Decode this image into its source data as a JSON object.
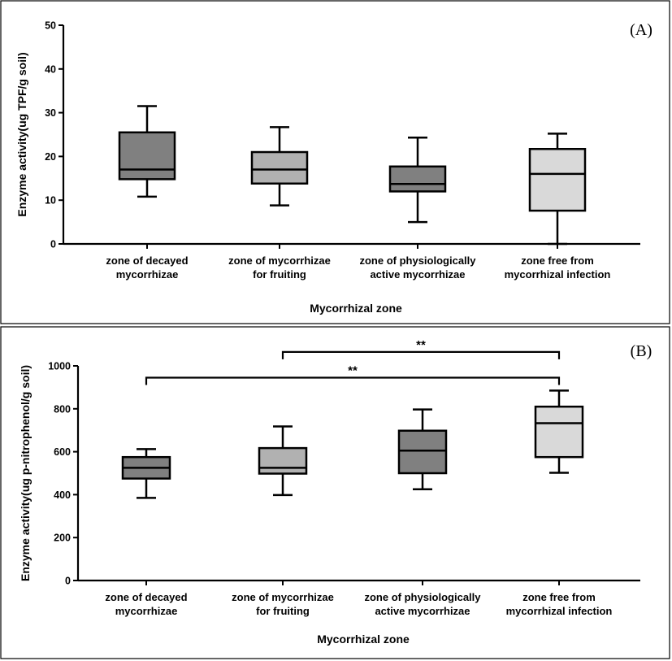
{
  "chart_data": [
    {
      "type": "boxplot",
      "panel_label": "(A)",
      "ylabel": "Enzyme activity(ug TPF/g soil)",
      "xlabel": "Mycorrhizal zone",
      "ylim": [
        0,
        50
      ],
      "yticks": [
        0,
        10,
        20,
        30,
        40,
        50
      ],
      "categories": [
        [
          "zone of decayed",
          "mycorrhizae"
        ],
        [
          "zone of mycorrhizae",
          "for fruiting"
        ],
        [
          "zone of physiologically",
          "active mycorrhizae"
        ],
        [
          "zone free from",
          "mycorrhizal infection"
        ]
      ],
      "boxes": [
        {
          "min": 10.8,
          "q1": 14.8,
          "median": 17.0,
          "q3": 25.5,
          "max": 31.5,
          "color": "#808080"
        },
        {
          "min": 8.8,
          "q1": 13.8,
          "median": 17.0,
          "q3": 21.0,
          "max": 26.7,
          "color": "#b1b1b1"
        },
        {
          "min": 5.0,
          "q1": 12.0,
          "median": 13.7,
          "q3": 17.7,
          "max": 24.3,
          "color": "#808080"
        },
        {
          "min": 0.0,
          "q1": 7.6,
          "median": 16.0,
          "q3": 21.7,
          "max": 25.2,
          "color": "#d9d9d9"
        }
      ],
      "significance": []
    },
    {
      "type": "boxplot",
      "panel_label": "(B)",
      "ylabel": "Enzyme activity(ug p-nitrophenol/g soil)",
      "xlabel": "Mycorrhizal zone",
      "ylim": [
        0,
        1000
      ],
      "yticks": [
        0,
        200,
        400,
        600,
        800,
        1000
      ],
      "categories": [
        [
          "zone of decayed",
          "mycorrhizae"
        ],
        [
          "zone of mycorrhizae",
          "for fruiting"
        ],
        [
          "zone of physiologically",
          "active mycorrhizae"
        ],
        [
          "zone free from",
          "mycorrhizal infection"
        ]
      ],
      "boxes": [
        {
          "min": 385,
          "q1": 475,
          "median": 525,
          "q3": 575,
          "max": 612,
          "color": "#808080"
        },
        {
          "min": 398,
          "q1": 498,
          "median": 525,
          "q3": 617,
          "max": 718,
          "color": "#b1b1b1"
        },
        {
          "min": 425,
          "q1": 500,
          "median": 605,
          "q3": 698,
          "max": 797,
          "color": "#808080"
        },
        {
          "min": 502,
          "q1": 575,
          "median": 733,
          "q3": 810,
          "max": 885,
          "color": "#d9d9d9"
        }
      ],
      "significance": [
        {
          "from": 1,
          "to": 3,
          "y": 1065,
          "label": "**"
        },
        {
          "from": 0,
          "to": 3,
          "y": 945,
          "label": "**"
        }
      ]
    }
  ]
}
